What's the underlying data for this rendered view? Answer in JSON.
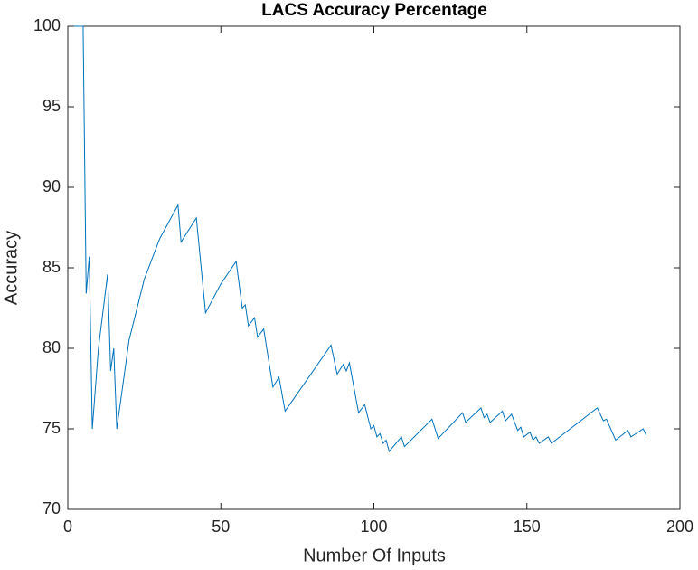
{
  "chart_data": {
    "type": "line",
    "title": "LACS Accuracy Percentage",
    "x_label": "Number Of Inputs",
    "y_label": "Accuracy",
    "xlim": [
      0,
      200
    ],
    "ylim": [
      70,
      100
    ],
    "xticks": [
      0,
      50,
      100,
      150,
      200
    ],
    "yticks": [
      70,
      75,
      80,
      85,
      90,
      95,
      100
    ],
    "grid": false,
    "x": [
      2,
      5,
      6,
      7,
      8,
      10,
      13,
      14,
      15,
      16,
      20,
      25,
      30,
      36,
      37,
      42,
      45,
      50,
      55,
      57,
      58,
      59,
      61,
      62,
      64,
      67,
      69,
      71,
      86,
      88,
      90,
      91,
      92,
      95,
      97,
      99,
      100,
      101,
      102,
      103,
      104,
      105,
      109,
      110,
      119,
      121,
      129,
      130,
      135,
      136,
      137,
      138,
      142,
      143,
      145,
      147,
      148,
      149,
      151,
      152,
      153,
      154,
      157,
      158,
      173,
      175,
      176,
      179,
      183,
      184,
      188,
      189
    ],
    "series": [
      {
        "color": "#0072bd",
        "values": [
          100,
          100,
          83.4,
          85.7,
          75.0,
          80.0,
          84.6,
          78.6,
          80.0,
          75.0,
          80.5,
          84.3,
          86.8,
          88.9,
          86.6,
          88.1,
          82.2,
          84.0,
          85.4,
          82.5,
          82.7,
          81.4,
          81.9,
          80.7,
          81.2,
          77.6,
          78.2,
          76.1,
          80.2,
          78.4,
          79.0,
          78.6,
          79.1,
          76.0,
          76.5,
          75.0,
          75.2,
          74.5,
          74.7,
          74.1,
          74.3,
          73.6,
          74.5,
          73.9,
          75.6,
          74.4,
          76.0,
          75.4,
          76.3,
          75.7,
          75.9,
          75.4,
          76.1,
          75.5,
          75.9,
          74.9,
          75.1,
          74.5,
          74.8,
          74.3,
          74.5,
          74.1,
          74.5,
          74.1,
          76.3,
          75.5,
          75.6,
          74.3,
          74.9,
          74.5,
          75.0,
          74.6
        ]
      }
    ]
  }
}
